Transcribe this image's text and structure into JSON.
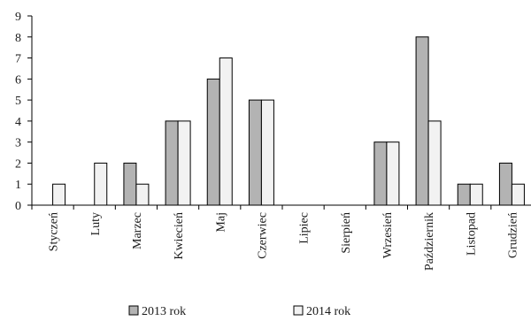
{
  "chart_data": {
    "type": "bar",
    "categories": [
      "Styczeń",
      "Luty",
      "Marzec",
      "Kwiecień",
      "Maj",
      "Czerwiec",
      "Lipiec",
      "Sierpień",
      "Wrzesień",
      "Październik",
      "Listopad",
      "Grudzień"
    ],
    "series": [
      {
        "name": "2013 rok",
        "color": "#b3b3b3",
        "values": [
          0,
          0,
          2,
          4,
          6,
          5,
          0,
          0,
          3,
          8,
          1,
          2
        ]
      },
      {
        "name": "2014 rok",
        "color": "#f2f2f2",
        "values": [
          1,
          2,
          1,
          4,
          7,
          5,
          0,
          0,
          3,
          4,
          1,
          1
        ]
      }
    ],
    "y_ticks": [
      "0",
      "1",
      "2",
      "3",
      "4",
      "5",
      "6",
      "7",
      "8",
      "9"
    ],
    "ylim": [
      0,
      9
    ],
    "grid": false,
    "legend_position": "bottom"
  }
}
